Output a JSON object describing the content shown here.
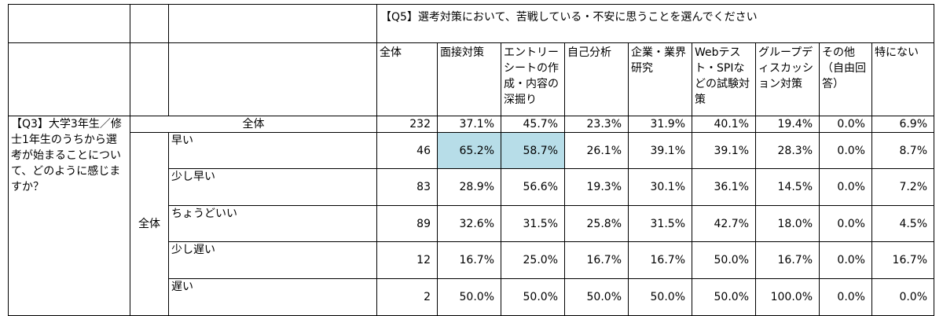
{
  "question_q5": "【Q5】選考対策において、苦戦している・不安に思うことを選んでください",
  "question_q3": "【Q3】大学3年生／修士1年生のうちから選考が始まることについて、どのように感じますか？",
  "group_label": "全体",
  "columns": [
    "全体",
    "面接対策",
    "エントリーシートの作成・内容の深掘り",
    "自己分析",
    "企業・業界研究",
    "Webテスト・SPIなどの試験対策",
    "グループディスカッション対策",
    "その他（自由回答）",
    "特にない"
  ],
  "total_row": {
    "label": "全体",
    "values": [
      "232",
      "37.1%",
      "45.7%",
      "23.3%",
      "31.9%",
      "40.1%",
      "19.4%",
      "0.0%",
      "6.9%"
    ]
  },
  "rows": [
    {
      "label": "早い",
      "values": [
        "46",
        "65.2%",
        "58.7%",
        "26.1%",
        "39.1%",
        "39.1%",
        "28.3%",
        "0.0%",
        "8.7%"
      ]
    },
    {
      "label": "少し早い",
      "values": [
        "83",
        "28.9%",
        "56.6%",
        "19.3%",
        "30.1%",
        "36.1%",
        "14.5%",
        "0.0%",
        "7.2%"
      ]
    },
    {
      "label": "ちょうどいい",
      "values": [
        "89",
        "32.6%",
        "31.5%",
        "25.8%",
        "31.5%",
        "42.7%",
        "18.0%",
        "0.0%",
        "4.5%"
      ]
    },
    {
      "label": "少し遅い",
      "values": [
        "12",
        "16.7%",
        "25.0%",
        "16.7%",
        "16.7%",
        "50.0%",
        "16.7%",
        "0.0%",
        "16.7%"
      ]
    },
    {
      "label": "遅い",
      "values": [
        "2",
        "50.0%",
        "50.0%",
        "50.0%",
        "50.0%",
        "50.0%",
        "100.0%",
        "0.0%",
        "0.0%"
      ]
    }
  ],
  "highlight_color": "#b7dde8"
}
